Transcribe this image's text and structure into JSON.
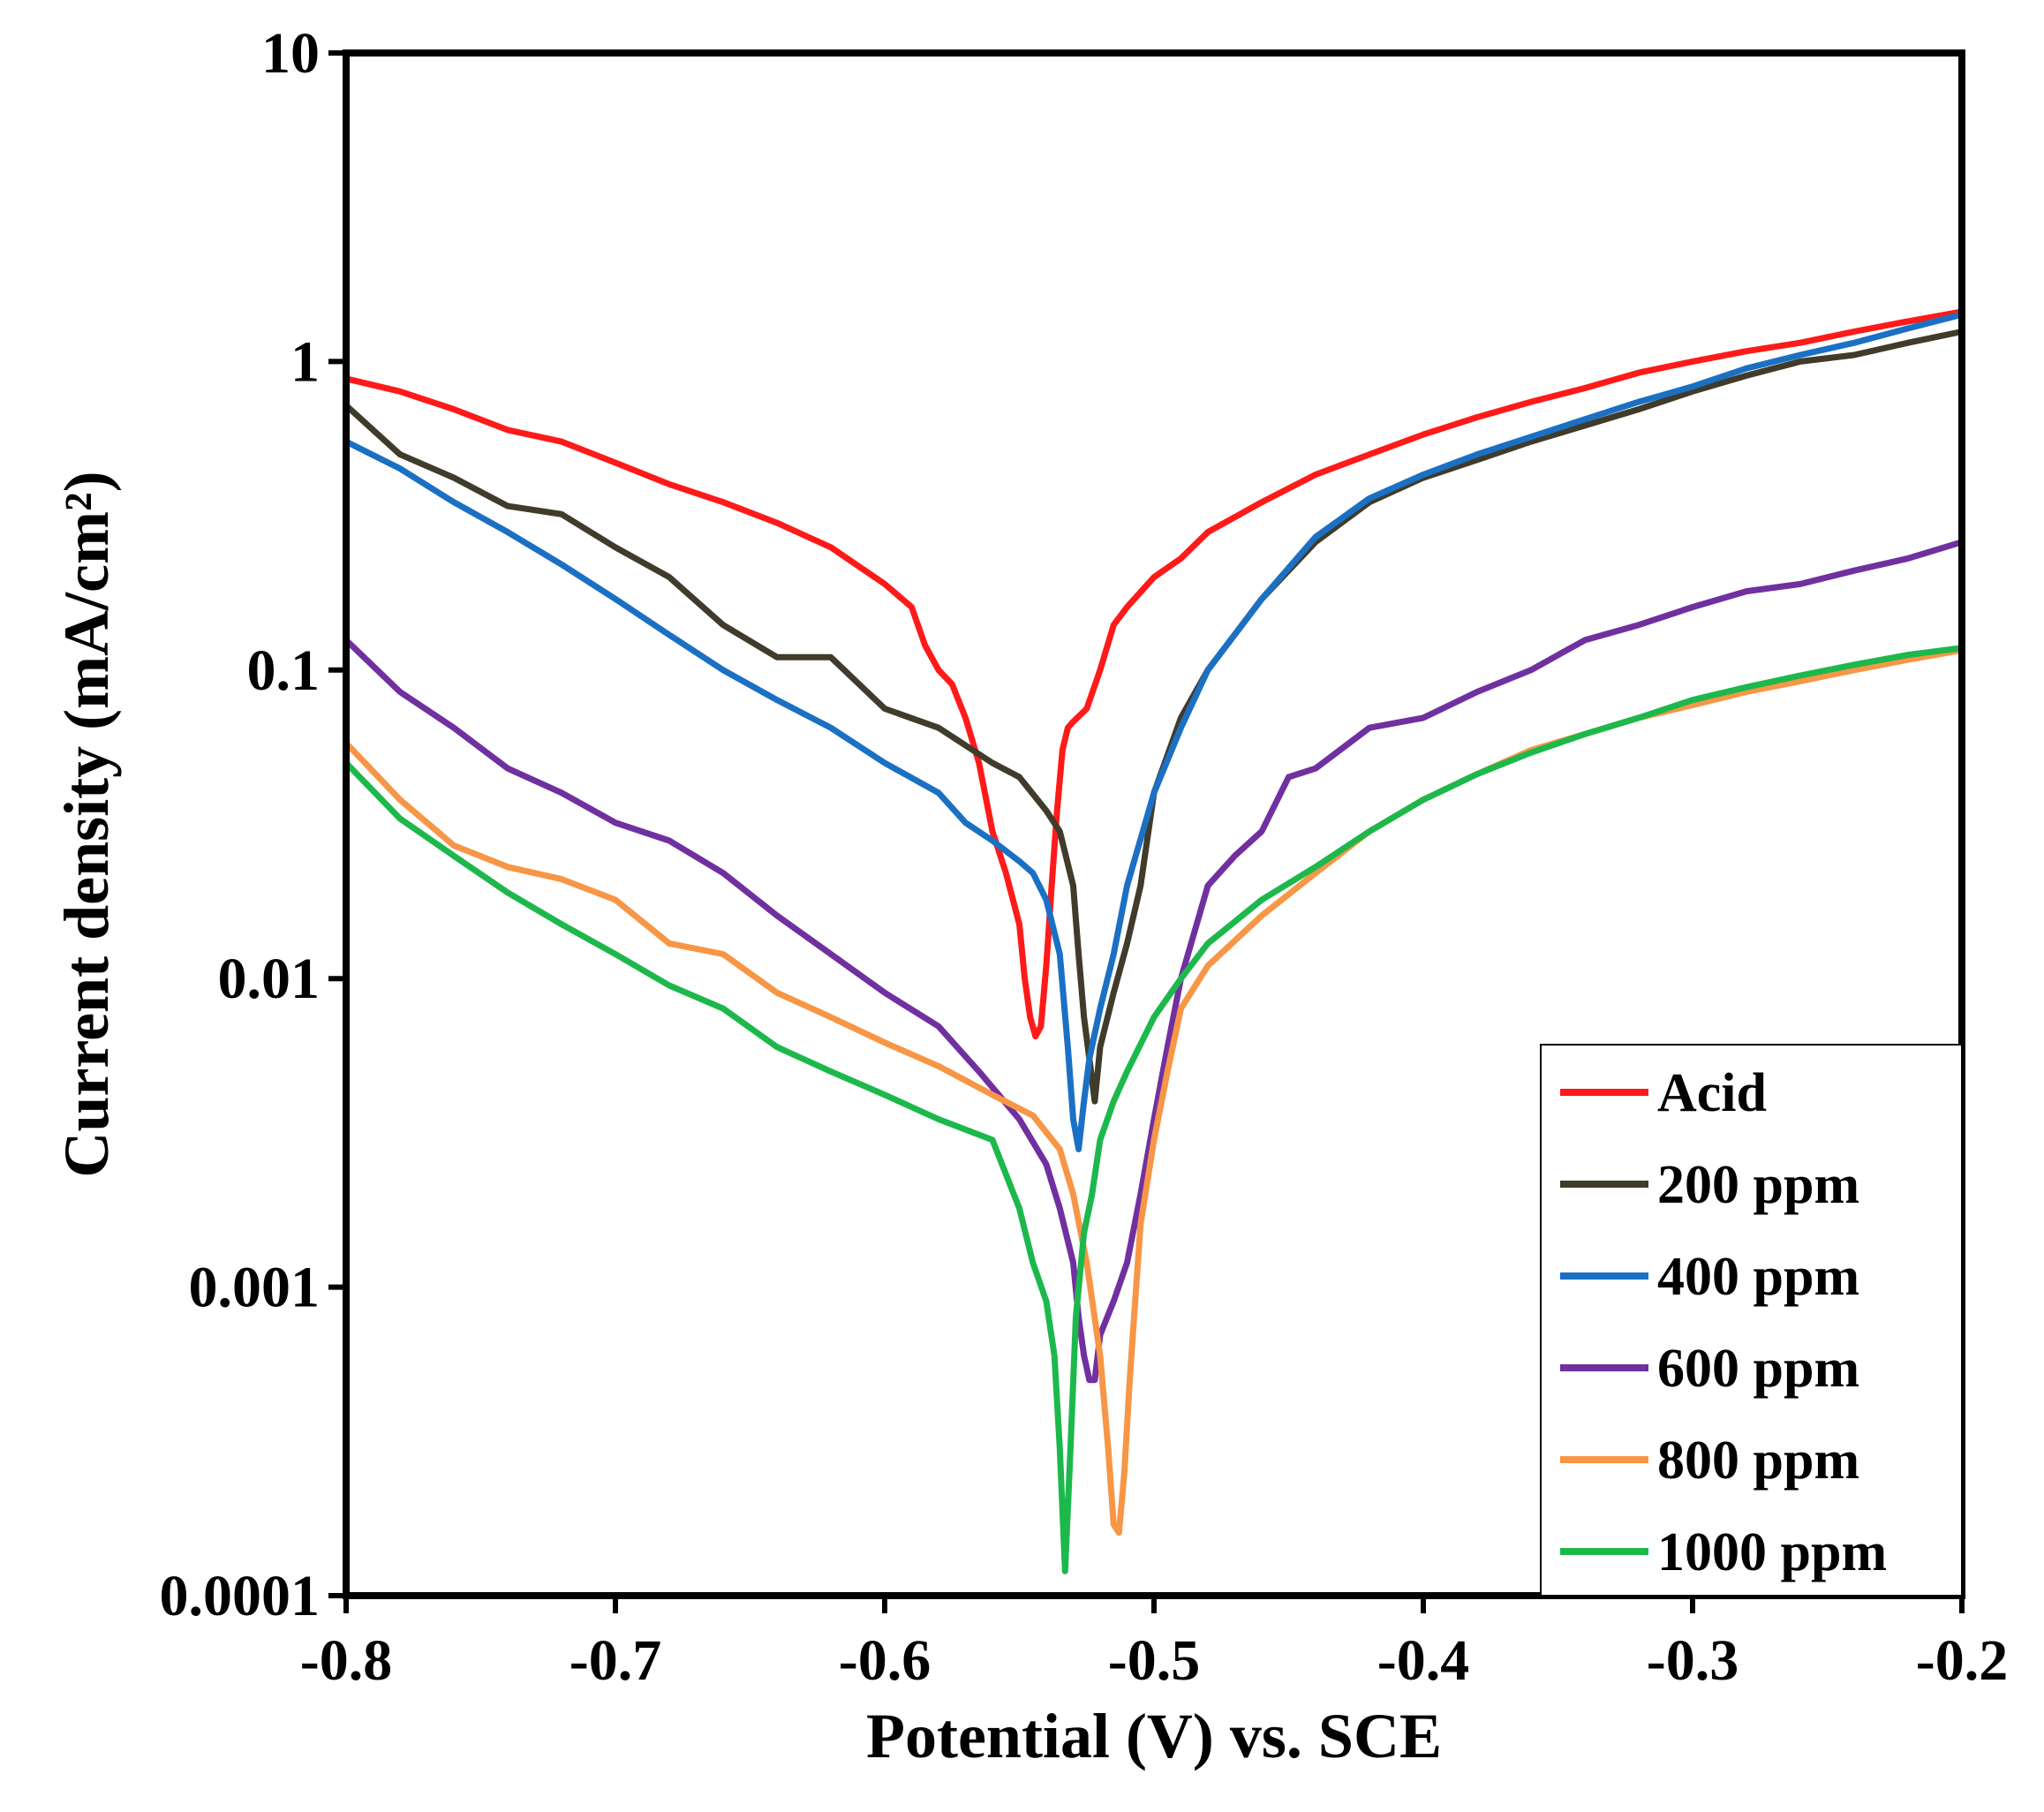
{
  "chart_data": {
    "type": "line",
    "title": "",
    "xlabel": "Potential (V) vs. SCE",
    "ylabel": "Current density (mA/cm²)",
    "xlim": [
      -0.8,
      -0.2
    ],
    "ylim": [
      0.0001,
      10
    ],
    "yscale": "log",
    "xticks": [
      -0.8,
      -0.7,
      -0.6,
      -0.5,
      -0.4,
      -0.3,
      -0.2
    ],
    "xtick_labels": [
      "-0.8",
      "-0.7",
      "-0.6",
      "-0.5",
      "-0.4",
      "-0.3",
      "-0.2"
    ],
    "yticks": [
      0.0001,
      0.001,
      0.01,
      0.1,
      1,
      10
    ],
    "ytick_labels": [
      "0.0001",
      "0.001",
      "0.01",
      "0.1",
      "1",
      "10"
    ],
    "grid": false,
    "legend_position": "bottom-right",
    "series": [
      {
        "name": "Acid",
        "color": "#ff1a1a",
        "x": [
          -0.8,
          -0.78,
          -0.76,
          -0.74,
          -0.72,
          -0.7,
          -0.68,
          -0.66,
          -0.64,
          -0.62,
          -0.6,
          -0.59,
          -0.585,
          -0.58,
          -0.575,
          -0.57,
          -0.565,
          -0.56,
          -0.555,
          -0.55,
          -0.548,
          -0.546,
          -0.544,
          -0.542,
          -0.54,
          -0.538,
          -0.536,
          -0.534,
          -0.532,
          -0.53,
          -0.525,
          -0.52,
          -0.515,
          -0.51,
          -0.5,
          -0.49,
          -0.48,
          -0.46,
          -0.44,
          -0.42,
          -0.4,
          -0.38,
          -0.36,
          -0.34,
          -0.32,
          -0.3,
          -0.28,
          -0.26,
          -0.24,
          -0.22,
          -0.2
        ],
        "y": [
          0.88,
          0.8,
          0.7,
          0.6,
          0.55,
          0.47,
          0.4,
          0.35,
          0.3,
          0.25,
          0.19,
          0.16,
          0.12,
          0.1,
          0.09,
          0.07,
          0.05,
          0.03,
          0.022,
          0.015,
          0.01,
          0.0075,
          0.0065,
          0.007,
          0.011,
          0.02,
          0.035,
          0.055,
          0.065,
          0.068,
          0.075,
          0.1,
          0.14,
          0.16,
          0.2,
          0.23,
          0.28,
          0.35,
          0.43,
          0.5,
          0.58,
          0.66,
          0.74,
          0.82,
          0.92,
          1.0,
          1.08,
          1.15,
          1.25,
          1.35,
          1.45
        ]
      },
      {
        "name": "200 ppm",
        "color": "#403b2a",
        "x": [
          -0.8,
          -0.78,
          -0.76,
          -0.74,
          -0.72,
          -0.7,
          -0.68,
          -0.66,
          -0.64,
          -0.62,
          -0.6,
          -0.58,
          -0.56,
          -0.55,
          -0.54,
          -0.535,
          -0.53,
          -0.528,
          -0.526,
          -0.524,
          -0.522,
          -0.52,
          -0.515,
          -0.51,
          -0.505,
          -0.5,
          -0.49,
          -0.48,
          -0.46,
          -0.44,
          -0.42,
          -0.4,
          -0.38,
          -0.36,
          -0.34,
          -0.32,
          -0.3,
          -0.28,
          -0.26,
          -0.24,
          -0.22,
          -0.2
        ],
        "y": [
          0.72,
          0.5,
          0.42,
          0.34,
          0.32,
          0.25,
          0.2,
          0.14,
          0.11,
          0.11,
          0.075,
          0.065,
          0.05,
          0.045,
          0.035,
          0.03,
          0.02,
          0.012,
          0.0075,
          0.0055,
          0.004,
          0.006,
          0.009,
          0.013,
          0.02,
          0.04,
          0.07,
          0.1,
          0.17,
          0.26,
          0.35,
          0.42,
          0.48,
          0.55,
          0.62,
          0.7,
          0.8,
          0.9,
          1.0,
          1.05,
          1.15,
          1.25
        ]
      },
      {
        "name": "400 ppm",
        "color": "#1b70c4",
        "x": [
          -0.8,
          -0.78,
          -0.76,
          -0.74,
          -0.72,
          -0.7,
          -0.68,
          -0.66,
          -0.64,
          -0.62,
          -0.6,
          -0.58,
          -0.57,
          -0.56,
          -0.55,
          -0.545,
          -0.54,
          -0.535,
          -0.532,
          -0.53,
          -0.528,
          -0.526,
          -0.524,
          -0.52,
          -0.515,
          -0.51,
          -0.5,
          -0.49,
          -0.48,
          -0.46,
          -0.44,
          -0.42,
          -0.4,
          -0.38,
          -0.36,
          -0.34,
          -0.32,
          -0.3,
          -0.28,
          -0.26,
          -0.24,
          -0.22,
          -0.2
        ],
        "y": [
          0.55,
          0.45,
          0.35,
          0.28,
          0.22,
          0.17,
          0.13,
          0.1,
          0.08,
          0.065,
          0.05,
          0.04,
          0.032,
          0.028,
          0.024,
          0.022,
          0.018,
          0.012,
          0.006,
          0.0035,
          0.0028,
          0.004,
          0.0055,
          0.008,
          0.012,
          0.02,
          0.04,
          0.065,
          0.1,
          0.17,
          0.27,
          0.36,
          0.43,
          0.5,
          0.57,
          0.65,
          0.74,
          0.83,
          0.95,
          1.05,
          1.15,
          1.28,
          1.42
        ]
      },
      {
        "name": "600 ppm",
        "color": "#7030a0",
        "x": [
          -0.8,
          -0.78,
          -0.76,
          -0.74,
          -0.72,
          -0.7,
          -0.68,
          -0.66,
          -0.64,
          -0.62,
          -0.6,
          -0.58,
          -0.565,
          -0.55,
          -0.54,
          -0.535,
          -0.53,
          -0.528,
          -0.526,
          -0.524,
          -0.522,
          -0.52,
          -0.515,
          -0.51,
          -0.505,
          -0.5,
          -0.495,
          -0.49,
          -0.48,
          -0.47,
          -0.46,
          -0.45,
          -0.44,
          -0.42,
          -0.4,
          -0.38,
          -0.36,
          -0.34,
          -0.32,
          -0.3,
          -0.28,
          -0.26,
          -0.24,
          -0.22,
          -0.2
        ],
        "y": [
          0.125,
          0.085,
          0.065,
          0.048,
          0.04,
          0.032,
          0.028,
          0.022,
          0.016,
          0.012,
          0.009,
          0.007,
          0.005,
          0.0035,
          0.0025,
          0.0018,
          0.0012,
          0.0008,
          0.0006,
          0.0005,
          0.0005,
          0.0007,
          0.0009,
          0.0012,
          0.002,
          0.0035,
          0.006,
          0.01,
          0.02,
          0.025,
          0.03,
          0.045,
          0.048,
          0.065,
          0.07,
          0.085,
          0.1,
          0.125,
          0.14,
          0.16,
          0.18,
          0.19,
          0.21,
          0.23,
          0.26
        ]
      },
      {
        "name": "800 ppm",
        "color": "#f79646",
        "x": [
          -0.8,
          -0.78,
          -0.76,
          -0.74,
          -0.72,
          -0.7,
          -0.68,
          -0.66,
          -0.64,
          -0.62,
          -0.6,
          -0.58,
          -0.56,
          -0.545,
          -0.535,
          -0.53,
          -0.525,
          -0.52,
          -0.517,
          -0.515,
          -0.513,
          -0.511,
          -0.509,
          -0.507,
          -0.505,
          -0.5,
          -0.495,
          -0.49,
          -0.48,
          -0.46,
          -0.44,
          -0.42,
          -0.4,
          -0.38,
          -0.36,
          -0.34,
          -0.32,
          -0.3,
          -0.28,
          -0.26,
          -0.24,
          -0.22,
          -0.2
        ],
        "y": [
          0.058,
          0.038,
          0.027,
          0.023,
          0.021,
          0.018,
          0.013,
          0.012,
          0.009,
          0.0075,
          0.0062,
          0.0052,
          0.0042,
          0.0036,
          0.0028,
          0.002,
          0.0012,
          0.0006,
          0.0003,
          0.00017,
          0.00016,
          0.00025,
          0.0005,
          0.0009,
          0.0016,
          0.003,
          0.005,
          0.008,
          0.011,
          0.016,
          0.022,
          0.03,
          0.038,
          0.046,
          0.055,
          0.062,
          0.07,
          0.077,
          0.085,
          0.092,
          0.1,
          0.108,
          0.116
        ]
      },
      {
        "name": "1000 ppm",
        "color": "#1db84c",
        "x": [
          -0.8,
          -0.78,
          -0.76,
          -0.74,
          -0.72,
          -0.7,
          -0.68,
          -0.66,
          -0.64,
          -0.62,
          -0.6,
          -0.58,
          -0.56,
          -0.55,
          -0.545,
          -0.54,
          -0.537,
          -0.535,
          -0.533,
          -0.531,
          -0.529,
          -0.526,
          -0.523,
          -0.52,
          -0.515,
          -0.51,
          -0.5,
          -0.49,
          -0.48,
          -0.46,
          -0.44,
          -0.42,
          -0.4,
          -0.38,
          -0.36,
          -0.34,
          -0.32,
          -0.3,
          -0.28,
          -0.26,
          -0.24,
          -0.22,
          -0.2
        ],
        "y": [
          0.05,
          0.033,
          0.025,
          0.019,
          0.015,
          0.012,
          0.0095,
          0.008,
          0.006,
          0.005,
          0.0042,
          0.0035,
          0.003,
          0.0018,
          0.0012,
          0.0009,
          0.0006,
          0.0003,
          0.00012,
          0.0003,
          0.0008,
          0.0015,
          0.002,
          0.003,
          0.004,
          0.005,
          0.0075,
          0.01,
          0.013,
          0.018,
          0.023,
          0.03,
          0.038,
          0.046,
          0.054,
          0.062,
          0.07,
          0.08,
          0.088,
          0.096,
          0.104,
          0.112,
          0.118
        ]
      }
    ]
  }
}
